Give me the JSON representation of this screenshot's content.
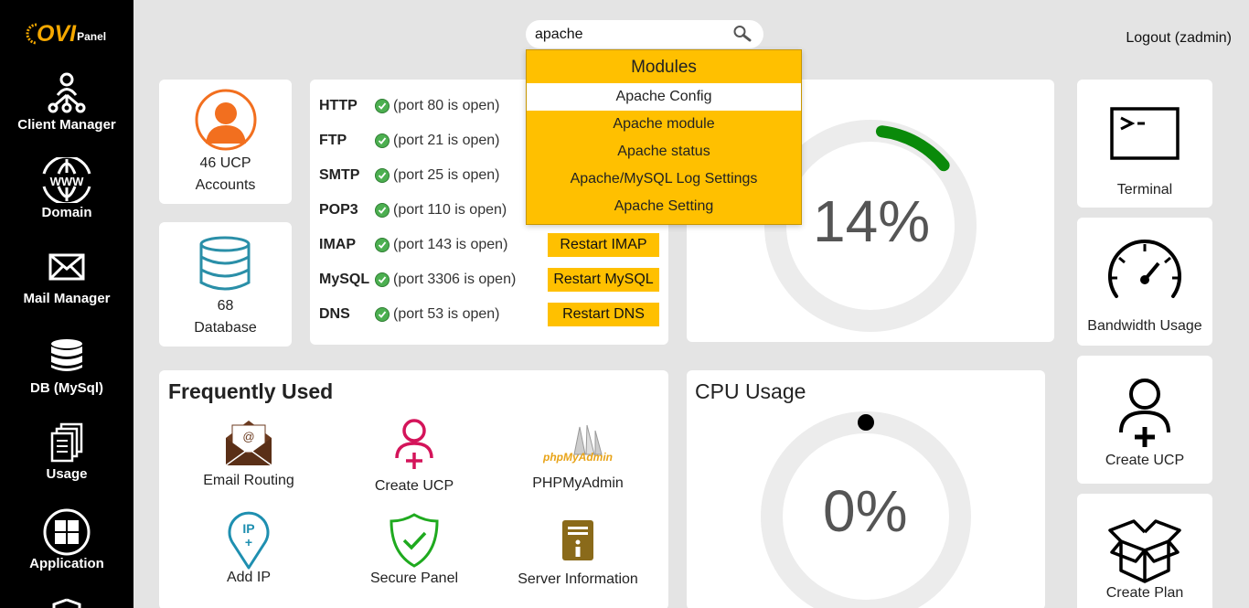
{
  "brand": {
    "ovi": "OVI",
    "panel": "Panel"
  },
  "sidebar": {
    "items": [
      {
        "label": "Client Manager",
        "icon": "client-network-icon"
      },
      {
        "label": "Domain",
        "icon": "www-globe-icon"
      },
      {
        "label": "Mail Manager",
        "icon": "envelope-icon"
      },
      {
        "label": "DB (MySql)",
        "icon": "database-icon"
      },
      {
        "label": "Usage",
        "icon": "documents-icon"
      },
      {
        "label": "Application",
        "icon": "apps-grid-icon"
      }
    ]
  },
  "search": {
    "value": "apache",
    "icon": "search-icon"
  },
  "header": {
    "logout": "Logout (zadmin)"
  },
  "stats": {
    "ucp": {
      "count": "46 UCP",
      "label": "Accounts",
      "icon": "user-icon",
      "color": "#f26f1f"
    },
    "database": {
      "count": "68",
      "label": "Database",
      "icon": "database-icon",
      "color": "#2a8fa8"
    }
  },
  "services": [
    {
      "name": "HTTP",
      "status": "(port 80 is open)",
      "button": ""
    },
    {
      "name": "FTP",
      "status": "(port 21 is open)",
      "button": ""
    },
    {
      "name": "SMTP",
      "status": "(port 25 is open)",
      "button": ""
    },
    {
      "name": "POP3",
      "status": "(port 110 is open)",
      "button": ""
    },
    {
      "name": "IMAP",
      "status": "(port 143 is open)",
      "button": "Restart IMAP"
    },
    {
      "name": "MySQL",
      "status": "(port 3306 is open)",
      "button": "Restart MySQL"
    },
    {
      "name": "DNS",
      "status": "(port 53 is open)",
      "button": "Restart DNS"
    }
  ],
  "dropdown": {
    "header": "Modules",
    "items": [
      "Apache Config",
      "Apache module",
      "Apache status",
      "Apache/MySQL Log Settings",
      "Apache Setting"
    ],
    "active_index": 0
  },
  "usage_gauge": {
    "value_text": "14%",
    "percent": 14,
    "color": "#0a8a0a"
  },
  "frequently_used": {
    "title": "Frequently Used",
    "items": [
      {
        "label": "Email Routing",
        "icon": "email-routing-icon"
      },
      {
        "label": "Create UCP",
        "icon": "create-user-icon"
      },
      {
        "label": "PHPMyAdmin",
        "icon": "phpmyadmin-logo",
        "logo_text": "phpMyAdmin"
      },
      {
        "label": "Add IP",
        "icon": "ip-pin-icon",
        "icon_text": "IP"
      },
      {
        "label": "Secure Panel",
        "icon": "shield-check-icon"
      },
      {
        "label": "Server Information",
        "icon": "server-info-icon"
      }
    ]
  },
  "cpu": {
    "title": "CPU Usage",
    "value_text": "0%",
    "percent": 0
  },
  "right_panel": [
    {
      "label": "Terminal",
      "icon": "terminal-icon"
    },
    {
      "label": "Bandwidth Usage",
      "icon": "speedometer-icon"
    },
    {
      "label": "Create UCP",
      "icon": "add-user-icon"
    },
    {
      "label": "Create Plan",
      "icon": "open-box-icon"
    }
  ],
  "colors": {
    "accent": "#ffc000",
    "sidebar": "#000000",
    "background": "#e4e4e4"
  }
}
